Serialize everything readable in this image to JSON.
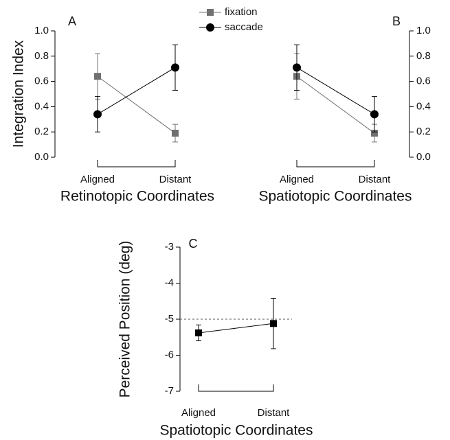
{
  "chart_data": [
    {
      "type": "line",
      "panel_label": "A",
      "y_label": "Integration Index",
      "x_label": "Retinotopic Coordinates",
      "categories": [
        "Aligned",
        "Distant"
      ],
      "y_axis_side": "left",
      "legend": true,
      "ylim": [
        0,
        1
      ],
      "yticks": [
        {
          "value": 0,
          "label": "0.0"
        },
        0.2,
        0.4,
        0.6,
        0.8,
        {
          "value": 1,
          "label": "1.0"
        }
      ],
      "series": [
        {
          "name": "fixation",
          "color": "#707070",
          "marker": "square",
          "values": [
            0.64,
            0.19
          ],
          "errors": [
            0.18,
            0.07
          ]
        },
        {
          "name": "saccade",
          "color": "#000000",
          "marker": "circle",
          "values": [
            0.34,
            0.71
          ],
          "errors": [
            0.14,
            0.18
          ]
        }
      ]
    },
    {
      "type": "line",
      "panel_label": "B",
      "x_label": "Spatiotopic Coordinates",
      "categories": [
        "Aligned",
        "Distant"
      ],
      "y_axis_side": "right",
      "legend": false,
      "ylim": [
        0,
        1
      ],
      "yticks": [
        {
          "value": 0,
          "label": "0.0"
        },
        0.2,
        0.4,
        0.6,
        0.8,
        {
          "value": 1,
          "label": "1.0"
        }
      ],
      "series": [
        {
          "color": "#707070",
          "marker": "square",
          "values": [
            0.64,
            0.19
          ],
          "errors": [
            0.18,
            0.07
          ]
        },
        {
          "color": "#000000",
          "marker": "circle",
          "values": [
            0.71,
            0.34
          ],
          "errors": [
            0.18,
            0.14
          ]
        }
      ]
    },
    {
      "type": "line",
      "panel_label": "C",
      "y_label": "Perceived Position (deg)",
      "x_label": "Spatiotopic Coordinates",
      "categories": [
        "Aligned",
        "Distant"
      ],
      "y_axis_side": "left",
      "legend": false,
      "ylim": [
        -7,
        -3
      ],
      "yticks": [
        -3,
        -4,
        -5,
        -6,
        -7
      ],
      "reference_line": -5,
      "series": [
        {
          "color": "#000000",
          "marker": "square",
          "values": [
            -5.38,
            -5.12
          ],
          "errors": [
            0.22,
            0.7
          ]
        }
      ]
    }
  ]
}
